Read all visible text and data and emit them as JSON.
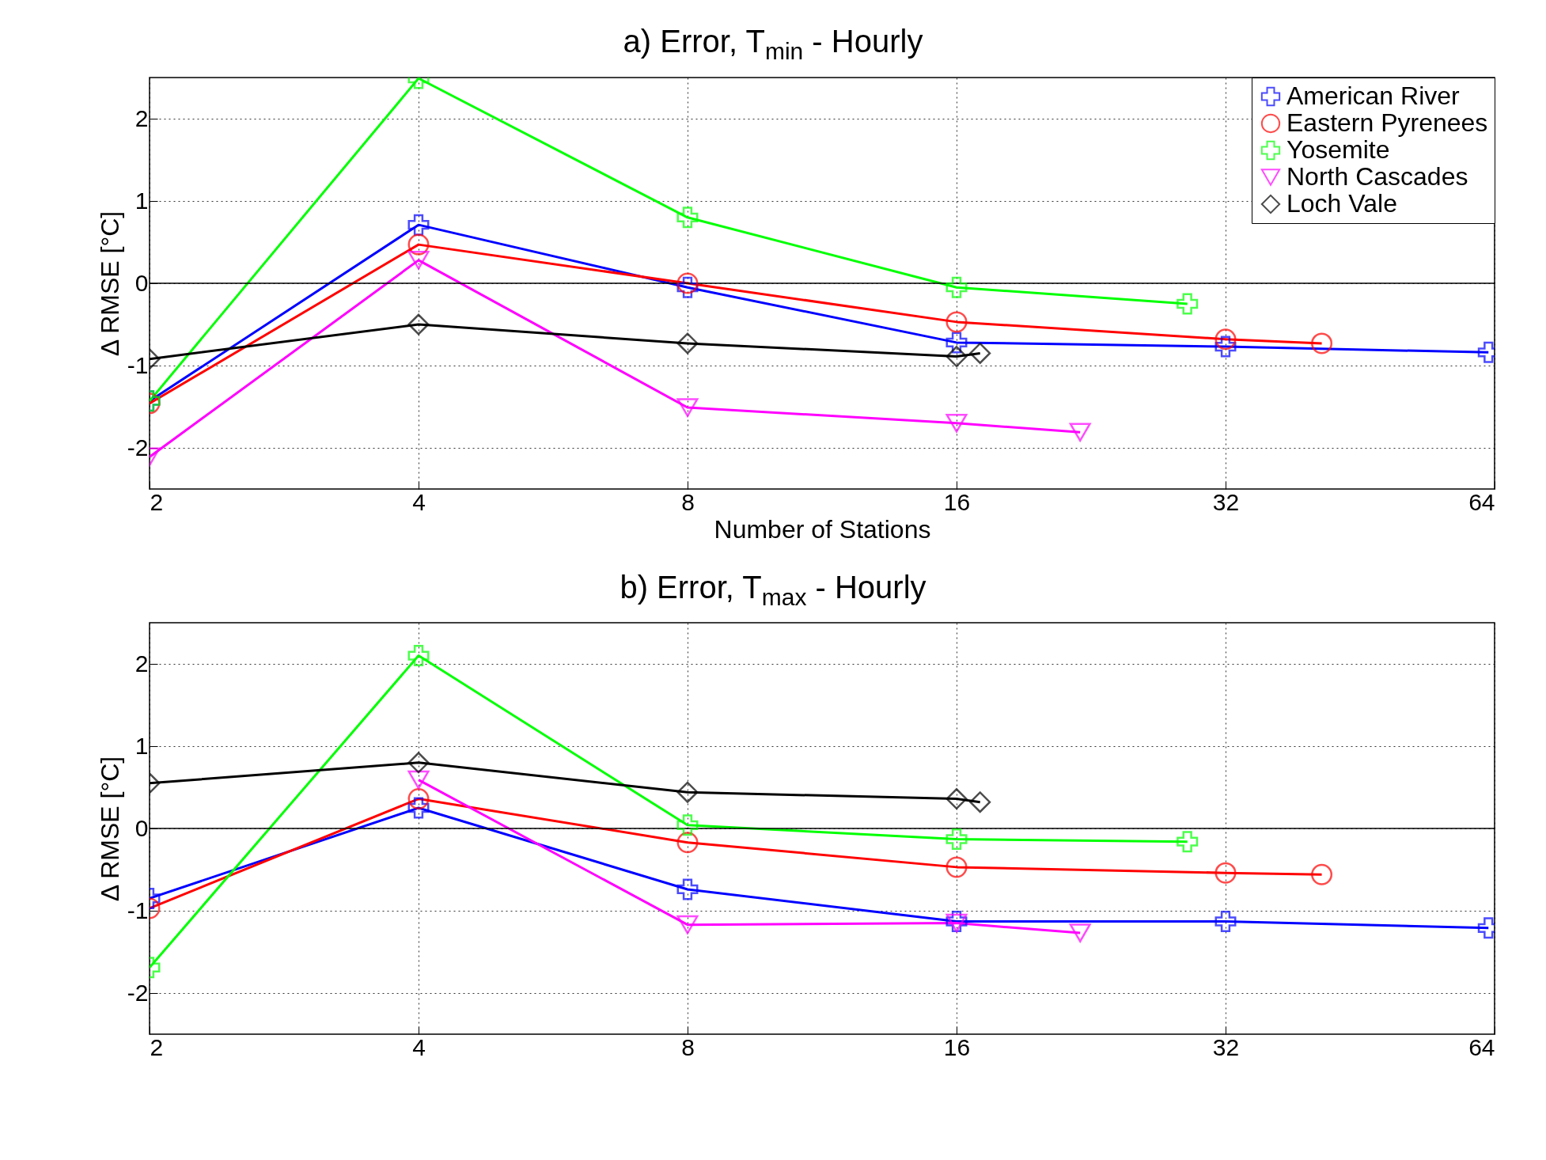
{
  "chart_data": [
    {
      "type": "line",
      "title": "a) Error, T$_{min}$ - Hourly",
      "xlabel": "Number of Stations",
      "ylabel": "Δ RMSE [°C]",
      "log": "x",
      "xlim": [
        2,
        64
      ],
      "xticks": [
        2,
        4,
        8,
        16,
        32,
        64
      ],
      "ylim": [
        -2.5,
        2.5
      ],
      "yticks": [
        -2,
        -1,
        0,
        1,
        2
      ],
      "grid": true,
      "legend": "top right",
      "line_style": "solid",
      "ref_lines": [
        {
          "axis": "y",
          "value": 0,
          "color": "#000000"
        }
      ],
      "series": [
        {
          "name": "American River",
          "color": "#0000ff",
          "marker": "cross",
          "x": [
            2,
            4,
            8,
            16,
            32,
            63
          ],
          "values": [
            -1.43,
            0.71,
            -0.05,
            -0.72,
            -0.77,
            -0.84
          ]
        },
        {
          "name": "Eastern Pyrenees",
          "color": "#ff0000",
          "marker": "circle",
          "x": [
            2,
            4,
            8,
            16,
            32,
            41
          ],
          "values": [
            -1.46,
            0.47,
            0,
            -0.47,
            -0.68,
            -0.73
          ]
        },
        {
          "name": "Yosemite",
          "color": "#00ff00",
          "marker": "cross",
          "x": [
            2,
            4,
            8,
            16,
            29
          ],
          "values": [
            -1.43,
            2.49,
            0.8,
            -0.05,
            -0.25
          ]
        },
        {
          "name": "North Cascades",
          "color": "#ff00ff",
          "marker": "triangle",
          "x": [
            2,
            4,
            8,
            16,
            22
          ],
          "values": [
            -2.11,
            0.28,
            -1.51,
            -1.7,
            -1.81
          ]
        },
        {
          "name": "Loch Vale",
          "color": "#000000",
          "marker": "diamond",
          "x": [
            2,
            4,
            8,
            16,
            17
          ],
          "values": [
            -0.92,
            -0.5,
            -0.73,
            -0.89,
            -0.85
          ]
        }
      ]
    },
    {
      "type": "line",
      "title": "b) Error, T$_{max}$ - Hourly",
      "ylabel": "Δ RMSE [°C]",
      "log": "x",
      "xlim": [
        2,
        64
      ],
      "xticks": [
        2,
        4,
        8,
        16,
        32,
        64
      ],
      "ylim": [
        -2.5,
        2.5
      ],
      "yticks": [
        -2,
        -1,
        0,
        1,
        2
      ],
      "grid": true,
      "line_style": "solid",
      "ref_lines": [
        {
          "axis": "y",
          "value": 0,
          "color": "#000000"
        }
      ],
      "series": [
        {
          "color": "#0000ff",
          "marker": "cross",
          "x": [
            2,
            4,
            8,
            16,
            32,
            63
          ],
          "values": [
            -0.85,
            0.25,
            -0.74,
            -1.13,
            -1.13,
            -1.21
          ]
        },
        {
          "color": "#ff0000",
          "marker": "circle",
          "x": [
            2,
            4,
            8,
            16,
            32,
            41
          ],
          "values": [
            -0.97,
            0.36,
            -0.17,
            -0.47,
            -0.54,
            -0.56
          ]
        },
        {
          "color": "#00ff00",
          "marker": "cross",
          "x": [
            2,
            4,
            8,
            16,
            29
          ],
          "values": [
            -1.69,
            2.1,
            0.04,
            -0.13,
            -0.16
          ]
        },
        {
          "color": "#ff00ff",
          "marker": "triangle",
          "x": [
            4,
            8,
            16,
            22
          ],
          "values": [
            0.59,
            -1.17,
            -1.15,
            -1.27
          ]
        },
        {
          "color": "#000000",
          "marker": "diamond",
          "x": [
            2,
            4,
            8,
            16,
            17
          ],
          "values": [
            0.55,
            0.8,
            0.44,
            0.36,
            0.32
          ]
        }
      ]
    }
  ]
}
